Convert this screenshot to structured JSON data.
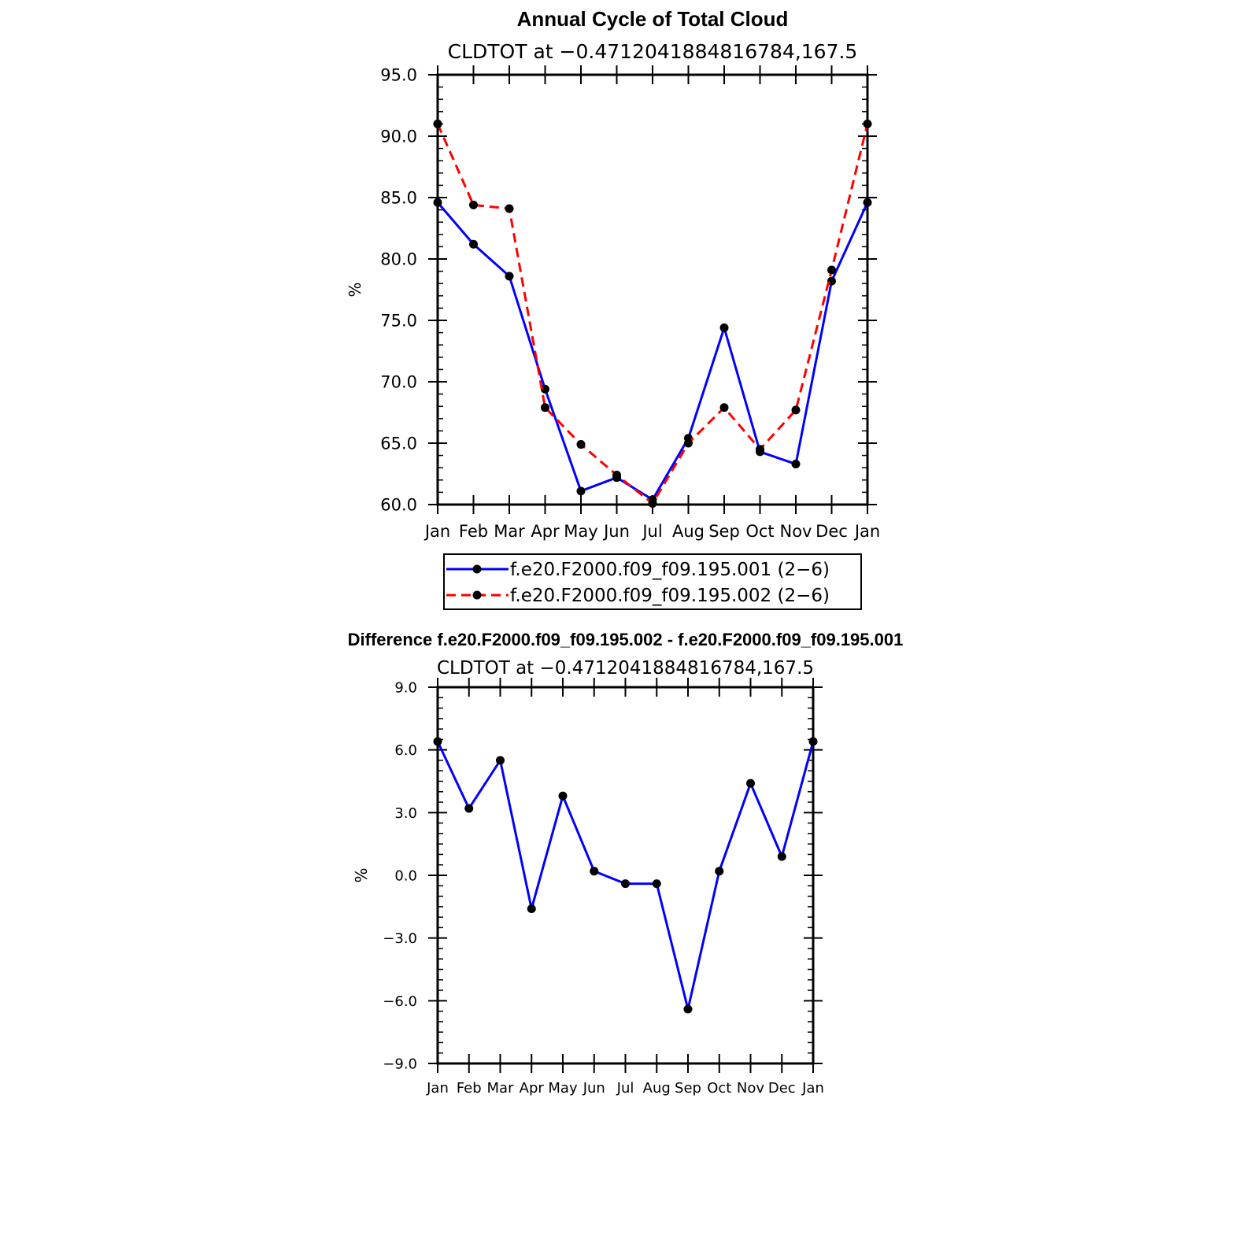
{
  "chart_data": [
    {
      "type": "line",
      "title": "Annual Cycle of Total Cloud",
      "subtitle": "CLDTOT at −0.4712041884816784,167.5",
      "xlabel": "",
      "ylabel": "%",
      "categories": [
        "Jan",
        "Feb",
        "Mar",
        "Apr",
        "May",
        "Jun",
        "Jul",
        "Aug",
        "Sep",
        "Oct",
        "Nov",
        "Dec",
        "Jan"
      ],
      "ylim": [
        60.0,
        95.0
      ],
      "yticks": [
        60.0,
        65.0,
        70.0,
        75.0,
        80.0,
        85.0,
        90.0,
        95.0
      ],
      "ytick_labels": [
        "60.0",
        "65.0",
        "70.0",
        "75.0",
        "80.0",
        "85.0",
        "90.0",
        "95.0"
      ],
      "series": [
        {
          "name": "f.e20.F2000.f09_f09.195.001 (2−6)",
          "color": "#0000ff",
          "dash": "solid",
          "values": [
            84.6,
            81.2,
            78.6,
            69.4,
            61.1,
            62.2,
            60.4,
            65.4,
            74.4,
            64.3,
            63.3,
            78.2,
            84.6
          ]
        },
        {
          "name": "f.e20.F2000.f09_f09.195.002 (2−6)",
          "color": "#ff0000",
          "dash": "dashed",
          "values": [
            91.0,
            84.4,
            84.1,
            67.9,
            64.9,
            62.4,
            60.1,
            65.0,
            67.9,
            64.5,
            67.7,
            79.1,
            91.0
          ]
        }
      ],
      "legend": "below"
    },
    {
      "type": "line",
      "title": "Difference f.e20.F2000.f09_f09.195.002 - f.e20.F2000.f09_f09.195.001",
      "subtitle": "CLDTOT at −0.4712041884816784,167.5",
      "xlabel": "",
      "ylabel": "%",
      "categories": [
        "Jan",
        "Feb",
        "Mar",
        "Apr",
        "May",
        "Jun",
        "Jul",
        "Aug",
        "Sep",
        "Oct",
        "Nov",
        "Dec",
        "Jan"
      ],
      "ylim": [
        -9.0,
        9.0
      ],
      "yticks": [
        -9.0,
        -6.0,
        -3.0,
        0.0,
        3.0,
        6.0,
        9.0
      ],
      "ytick_labels": [
        "−9.0",
        "−6.0",
        "−3.0",
        "0.0",
        "3.0",
        "6.0",
        "9.0"
      ],
      "series": [
        {
          "name": "difference",
          "color": "#0000ff",
          "dash": "solid",
          "values": [
            6.4,
            3.2,
            5.5,
            -1.6,
            3.8,
            0.2,
            -0.4,
            -0.4,
            -6.4,
            0.2,
            4.4,
            0.9,
            6.4
          ]
        }
      ],
      "legend": "none"
    }
  ]
}
